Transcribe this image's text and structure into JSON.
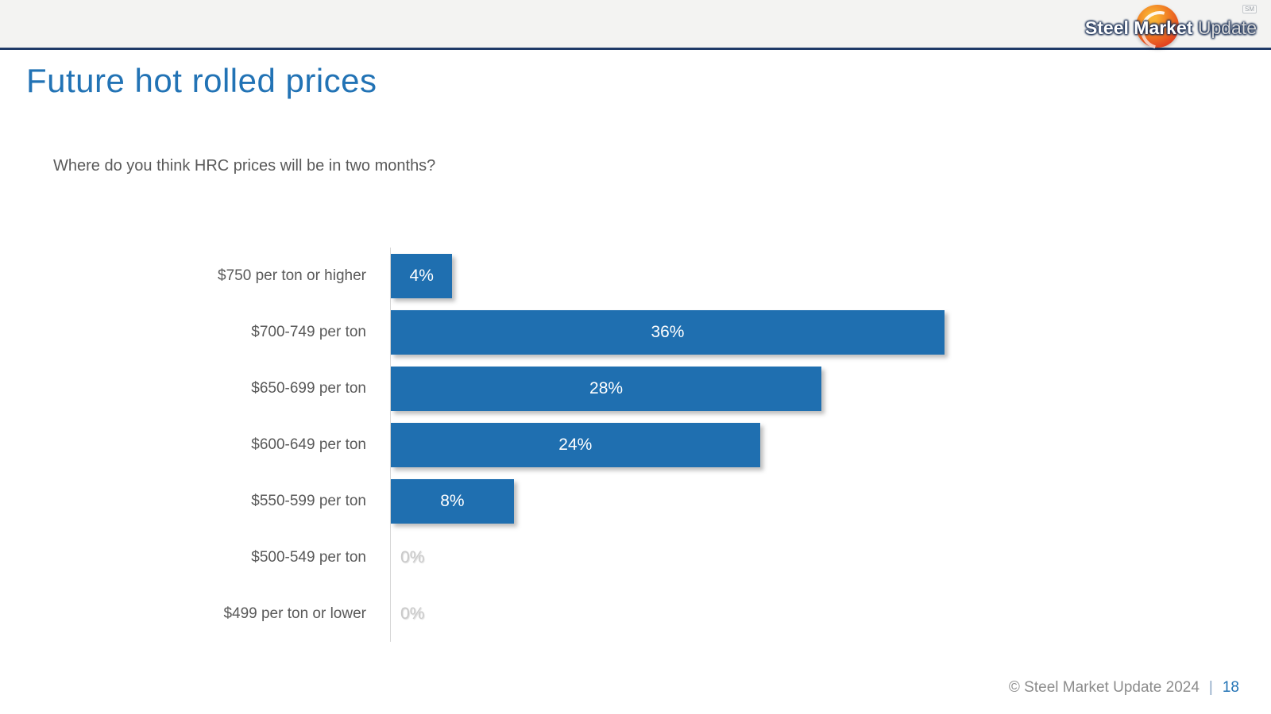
{
  "header": {
    "logo": {
      "brand_bold": "Steel Market",
      "brand_light": " Update",
      "sm_mark": "SM"
    }
  },
  "slide": {
    "title": "Future hot rolled prices",
    "question": "Where do you think HRC prices will be in two months?"
  },
  "footer": {
    "copyright": "© Steel Market Update 2024",
    "separator": "|",
    "page_number": "18"
  },
  "chart_data": {
    "type": "bar",
    "orientation": "horizontal",
    "title": "Future hot rolled prices",
    "subtitle": "Where do you think HRC prices will be in two months?",
    "categories": [
      "$750 per ton or higher",
      "$700-749 per ton",
      "$650-699 per ton",
      "$600-649 per ton",
      "$550-599 per ton",
      "$500-549 per ton",
      "$499 per ton or lower"
    ],
    "values": [
      4,
      36,
      28,
      24,
      8,
      0,
      0
    ],
    "value_labels": [
      "4%",
      "36%",
      "28%",
      "24%",
      "8%",
      "0%",
      "0%"
    ],
    "xlabel": "",
    "ylabel": "",
    "xlim": [
      0,
      36
    ],
    "grid": false,
    "legend": false,
    "bar_color": "#1F6FB0",
    "bar_label_color": "#FFFFFF",
    "zero_label_color": "#C9C9C9",
    "category_label_color": "#595959",
    "axis_line_color": "#D6D6D6"
  }
}
